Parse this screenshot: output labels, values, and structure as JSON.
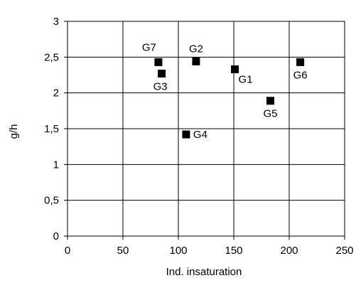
{
  "chart_data": {
    "type": "scatter",
    "xlabel": "Ind. insaturation",
    "ylabel": "g/h",
    "xlim": [
      0,
      250
    ],
    "ylim": [
      0,
      3
    ],
    "x_ticks": [
      0,
      50,
      100,
      150,
      200,
      250
    ],
    "y_ticks": [
      0,
      0.5,
      1,
      1.5,
      2,
      2.5,
      3
    ],
    "y_tick_labels": [
      "0",
      "0,5",
      "1",
      "1,5",
      "2",
      "2,5",
      "3"
    ],
    "x_tick_labels": [
      "0",
      "50",
      "100",
      "150",
      "200",
      "250"
    ],
    "grid": "horizontal and vertical",
    "marker": "square",
    "marker_color": "#000000",
    "points": [
      {
        "label": "G1",
        "x": 151,
        "y": 2.33,
        "label_pos": "below-right"
      },
      {
        "label": "G2",
        "x": 116,
        "y": 2.44,
        "label_pos": "above"
      },
      {
        "label": "G3",
        "x": 85,
        "y": 2.27,
        "label_pos": "below-left"
      },
      {
        "label": "G4",
        "x": 107,
        "y": 1.42,
        "label_pos": "right"
      },
      {
        "label": "G5",
        "x": 183,
        "y": 1.89,
        "label_pos": "below"
      },
      {
        "label": "G6",
        "x": 210,
        "y": 2.43,
        "label_pos": "below"
      },
      {
        "label": "G7",
        "x": 82,
        "y": 2.43,
        "label_pos": "above-left"
      }
    ]
  }
}
